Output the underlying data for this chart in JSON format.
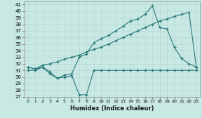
{
  "xlabel": "Humidex (Indice chaleur)",
  "background_color": "#c8e8e4",
  "grid_color": "#b8d8d4",
  "line_color": "#2a7a7a",
  "xlim": [
    -0.5,
    23.5
  ],
  "ylim": [
    27,
    41.5
  ],
  "yticks": [
    27,
    28,
    29,
    30,
    31,
    32,
    33,
    34,
    35,
    36,
    37,
    38,
    39,
    40,
    41
  ],
  "xticks": [
    0,
    1,
    2,
    3,
    4,
    5,
    6,
    7,
    8,
    9,
    10,
    11,
    12,
    13,
    14,
    15,
    16,
    17,
    18,
    19,
    20,
    21,
    22,
    23
  ],
  "series1_x": [
    0,
    1,
    2,
    3,
    4,
    5,
    6,
    7,
    8,
    9,
    10,
    11,
    12,
    13,
    14,
    15,
    16,
    17,
    18,
    19,
    20,
    21,
    22,
    23
  ],
  "series1_y": [
    31.0,
    31.0,
    31.5,
    30.5,
    29.8,
    30.0,
    30.2,
    27.3,
    27.3,
    31.0,
    31.0,
    31.0,
    31.0,
    31.0,
    31.0,
    31.0,
    31.0,
    31.0,
    31.0,
    31.0,
    31.0,
    31.0,
    31.0,
    31.0
  ],
  "series2_x": [
    0,
    1,
    2,
    3,
    4,
    5,
    6,
    7,
    8,
    9,
    10,
    11,
    12,
    13,
    14,
    15,
    16,
    17,
    18,
    19,
    20,
    21,
    22,
    23
  ],
  "series2_y": [
    31.5,
    31.2,
    31.8,
    32.0,
    32.3,
    32.7,
    33.0,
    33.3,
    33.8,
    34.2,
    34.5,
    35.0,
    35.5,
    36.0,
    36.5,
    37.0,
    37.5,
    38.0,
    38.5,
    38.8,
    39.2,
    39.5,
    39.8,
    31.5
  ],
  "series3_x": [
    0,
    1,
    2,
    3,
    4,
    5,
    6,
    7,
    8,
    9,
    10,
    11,
    12,
    13,
    14,
    15,
    16,
    17,
    18,
    19,
    20,
    21,
    22,
    23
  ],
  "series3_y": [
    31.5,
    31.2,
    31.5,
    30.8,
    29.8,
    30.3,
    30.5,
    33.0,
    33.5,
    35.2,
    35.8,
    36.3,
    37.0,
    37.7,
    38.5,
    38.8,
    39.5,
    40.8,
    37.5,
    37.3,
    34.5,
    32.8,
    32.0,
    31.5
  ]
}
